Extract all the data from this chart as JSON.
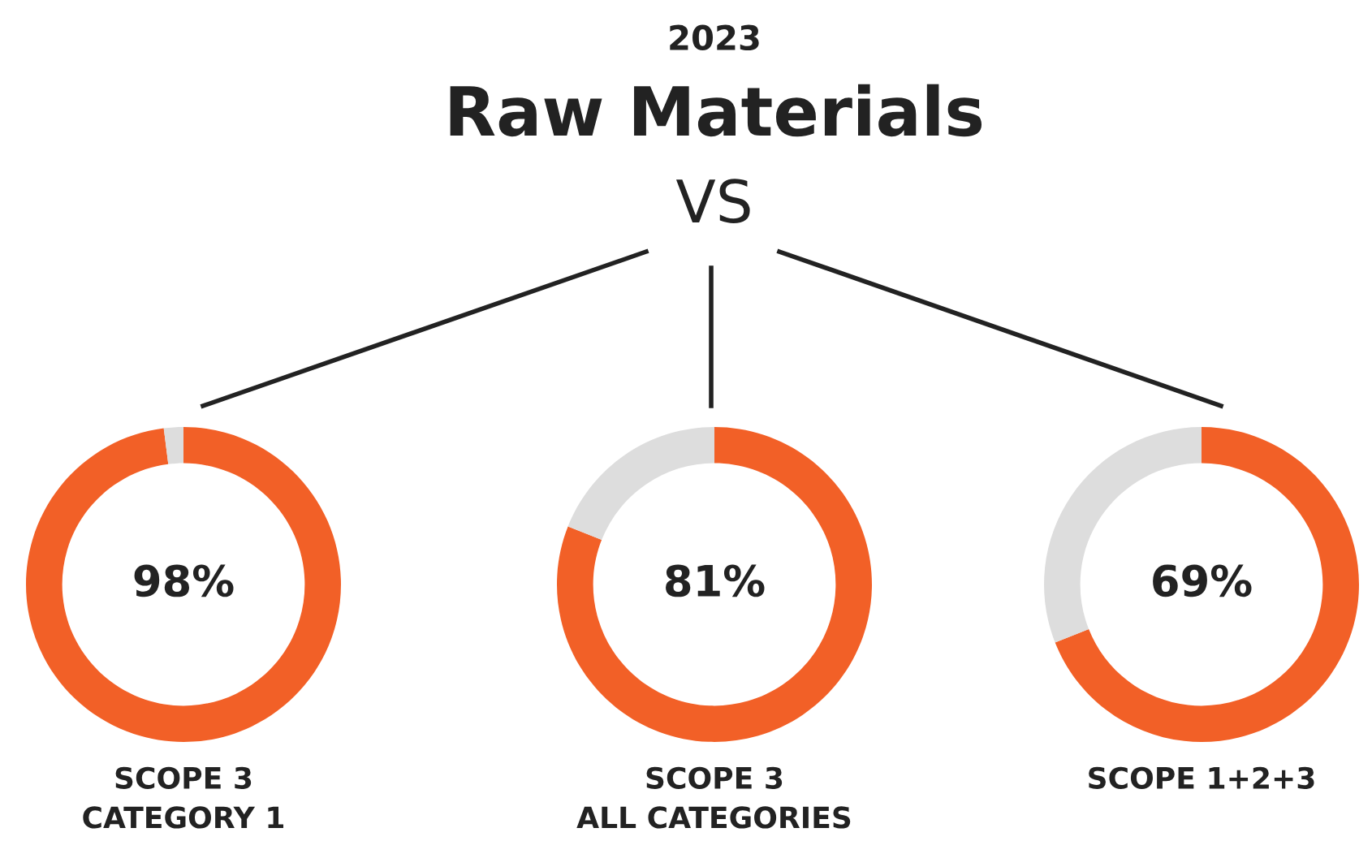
{
  "chart_data": [
    {
      "type": "donut",
      "annotations": [
        "98%"
      ],
      "xlabel": "SCOPE 3\nCATEGORY 1",
      "categories": [
        null,
        null
      ],
      "values": [
        98,
        2
      ],
      "colors": [
        "#f26027",
        "#dddddd"
      ]
    },
    {
      "type": "donut",
      "subtitle": "2023",
      "title": "Raw Materials",
      "annotations": [
        "VS",
        "81%"
      ],
      "xlabel": "SCOPE 3\nALL CATEGORIES",
      "categories": [
        null,
        null
      ],
      "values": [
        81,
        19
      ],
      "colors": [
        "#f26027",
        "#dddddd"
      ]
    },
    {
      "type": "donut",
      "annotations": [
        "69%"
      ],
      "xlabel": "SCOPE 1+2+3",
      "categories": [
        null,
        null
      ],
      "values": [
        69,
        31
      ],
      "colors": [
        "#f26027",
        "#dddddd"
      ]
    }
  ]
}
